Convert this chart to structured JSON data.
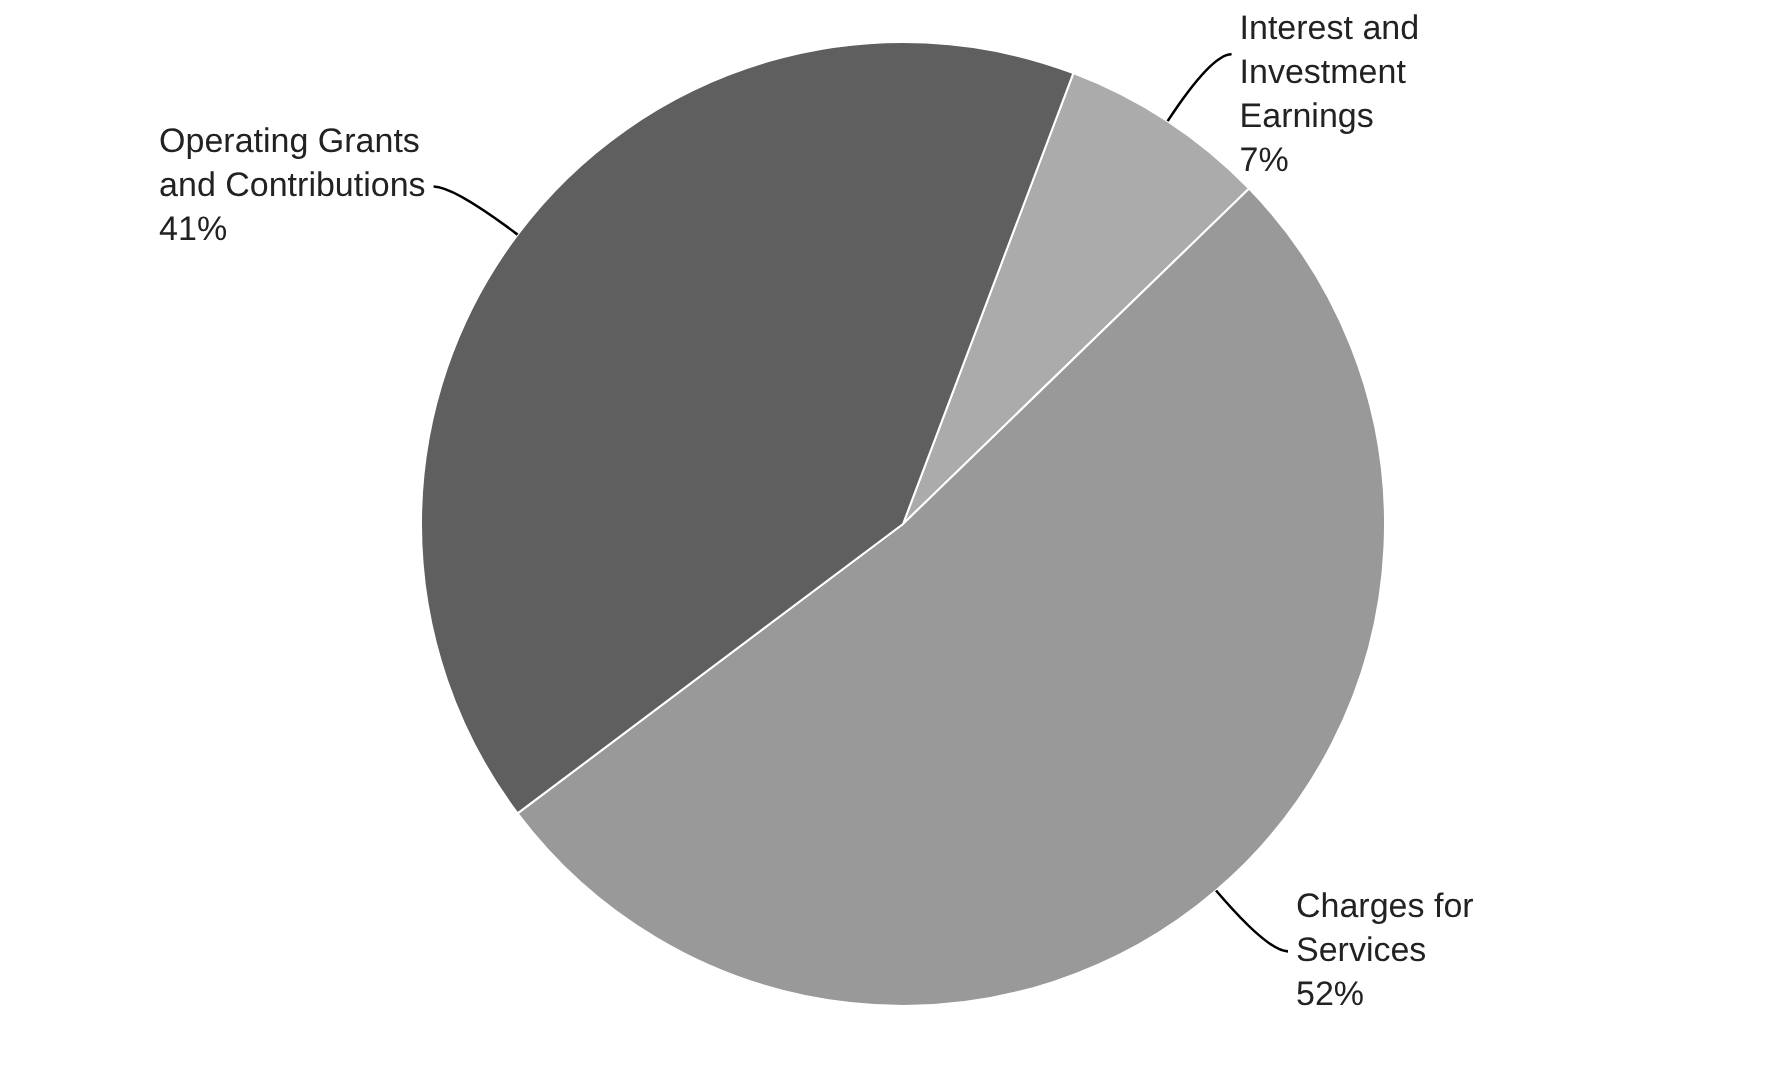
{
  "chart_data": {
    "type": "pie",
    "categories": [
      "Interest and Investment Earnings",
      "Charges for Services",
      "Operating Grants and Contributions"
    ],
    "values": [
      7,
      52,
      41
    ],
    "value_labels": [
      "7%",
      "52%",
      "41%"
    ],
    "colors": [
      "#ababab",
      "#999999",
      "#5f5f5f"
    ],
    "legend": false
  }
}
